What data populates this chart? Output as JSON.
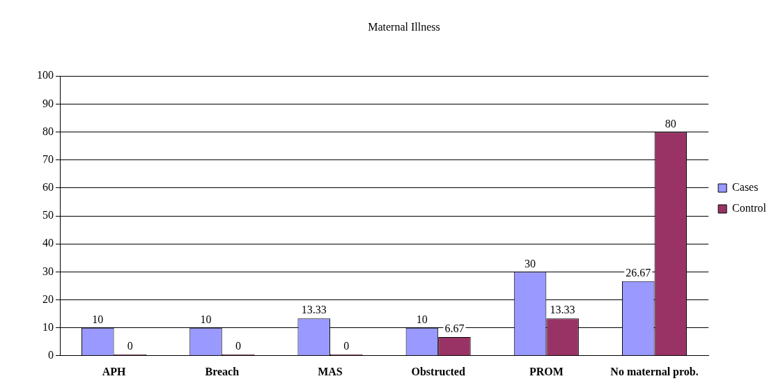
{
  "chart_data": {
    "type": "bar",
    "title": "Maternal Illness",
    "categories": [
      "APH",
      "Breach",
      "MAS",
      "Obstructed",
      "PROM",
      "No maternal prob."
    ],
    "series": [
      {
        "name": "Cases",
        "color": "#9999ff",
        "values": [
          10,
          10,
          13.33,
          10,
          30,
          26.67
        ]
      },
      {
        "name": "Control",
        "color": "#993366",
        "values": [
          0,
          0,
          0,
          6.67,
          13.33,
          80
        ]
      }
    ],
    "ylim": [
      0,
      100
    ],
    "yticks": [
      0,
      10,
      20,
      30,
      40,
      50,
      60,
      70,
      80,
      90,
      100
    ],
    "grid": "y",
    "legend": "right",
    "data_labels": true
  }
}
